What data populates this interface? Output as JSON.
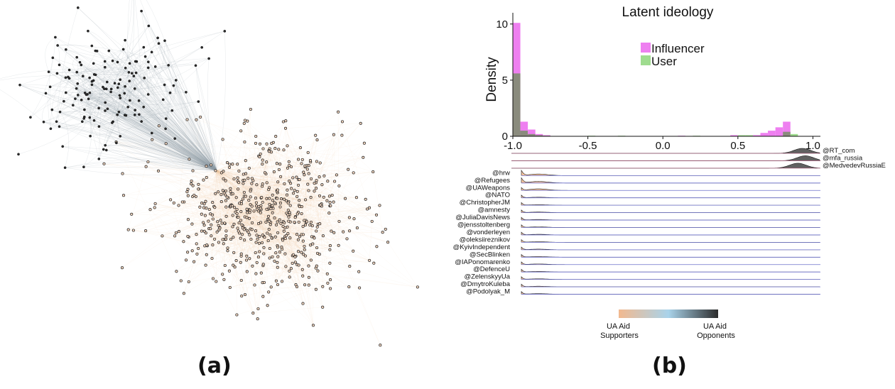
{
  "panel_labels": {
    "a": "(a)",
    "b": "(b)"
  },
  "network": {
    "groups": [
      {
        "name": "UA Aid Opponents",
        "node_count": 150,
        "color": "#2b2b2b",
        "edge_color": "#8e9ba2"
      },
      {
        "name": "UA Aid Supporters",
        "node_count": 620,
        "color": "#f1d5bf",
        "edge_color": "#ecc3a0"
      }
    ]
  },
  "colors": {
    "influencer": "#ee7ff0",
    "user": "#9fdc8f",
    "overlap": "#8a8b7d",
    "supporter": "#f2b98f",
    "mid": "#a9d3ea",
    "opponent": "#2c2c2c"
  },
  "chart_data": [
    {
      "type": "bar",
      "title": "Latent ideology",
      "ylabel": "Density",
      "xlabel": "",
      "xlim": [
        -1.0,
        1.05
      ],
      "ylim": [
        0,
        11
      ],
      "xticks": [
        "-1.0",
        "-0.5",
        "0.0",
        "0.5",
        "1.0"
      ],
      "yticks": [
        "0",
        "5",
        "10"
      ],
      "legend": {
        "placement": "center-right"
      },
      "bin_width": 0.05,
      "series": [
        {
          "name": "Influencer",
          "bins": [
            [
              -1.0,
              10.1
            ],
            [
              -0.95,
              1.3
            ],
            [
              -0.9,
              0.6
            ],
            [
              -0.85,
              0.2
            ],
            [
              -0.8,
              0.1
            ],
            [
              0.1,
              0.05
            ],
            [
              0.45,
              0.1
            ],
            [
              0.6,
              0.1
            ],
            [
              0.65,
              0.3
            ],
            [
              0.7,
              0.5
            ],
            [
              0.75,
              0.8
            ],
            [
              0.8,
              1.3
            ]
          ]
        },
        {
          "name": "User",
          "bins": [
            [
              -1.05,
              10.3
            ],
            [
              -1.0,
              5.6
            ],
            [
              -0.95,
              0.5
            ],
            [
              -0.9,
              0.2
            ],
            [
              -0.85,
              0.1
            ],
            [
              -0.8,
              0.05
            ],
            [
              -0.5,
              0.05
            ],
            [
              -0.3,
              0.05
            ],
            [
              0.2,
              0.05
            ],
            [
              0.5,
              0.1
            ],
            [
              0.55,
              0.1
            ],
            [
              0.8,
              0.4
            ],
            [
              0.85,
              0.2
            ]
          ]
        }
      ]
    },
    {
      "type": "area",
      "subtype": "ridgeline",
      "xlim": [
        -1.0,
        1.05
      ],
      "colorbar": {
        "left_label": "UA Aid\nSupporters",
        "right_label": "UA Aid\nOpponents"
      },
      "series": [
        {
          "name": "@RT_com",
          "side": "opponent",
          "peak": 0.93
        },
        {
          "name": "@mfa_russia",
          "side": "opponent",
          "peak": 0.95
        },
        {
          "name": "@MedvedevRussiaE",
          "side": "opponent",
          "peak": 0.9
        },
        {
          "name": "@hrw",
          "side": "supporter",
          "peak": -0.96
        },
        {
          "name": "@Refugees",
          "side": "supporter",
          "peak": -0.96
        },
        {
          "name": "@UAWeapons",
          "side": "supporter",
          "peak": -0.97
        },
        {
          "name": "@NATO",
          "side": "supporter",
          "peak": -0.97
        },
        {
          "name": "@ChristopherJM",
          "side": "supporter",
          "peak": -0.97
        },
        {
          "name": "@amnesty",
          "side": "supporter",
          "peak": -0.97
        },
        {
          "name": "@JuliaDavisNews",
          "side": "supporter",
          "peak": -0.97
        },
        {
          "name": "@jensstoltenberg",
          "side": "supporter",
          "peak": -0.97
        },
        {
          "name": "@vonderleyen",
          "side": "supporter",
          "peak": -0.97
        },
        {
          "name": "@oleksiireznikov",
          "side": "supporter",
          "peak": -0.97
        },
        {
          "name": "@KyivIndependent",
          "side": "supporter",
          "peak": -0.97
        },
        {
          "name": "@SecBlinken",
          "side": "supporter",
          "peak": -0.97
        },
        {
          "name": "@IAPonomarenko",
          "side": "supporter",
          "peak": -0.97
        },
        {
          "name": "@DefenceU",
          "side": "supporter",
          "peak": -0.97
        },
        {
          "name": "@ZelenskyyUa",
          "side": "supporter",
          "peak": -0.97
        },
        {
          "name": "@DmytroKuleba",
          "side": "supporter",
          "peak": -0.97
        },
        {
          "name": "@Podolyak_M",
          "side": "supporter",
          "peak": -0.97
        }
      ]
    }
  ]
}
